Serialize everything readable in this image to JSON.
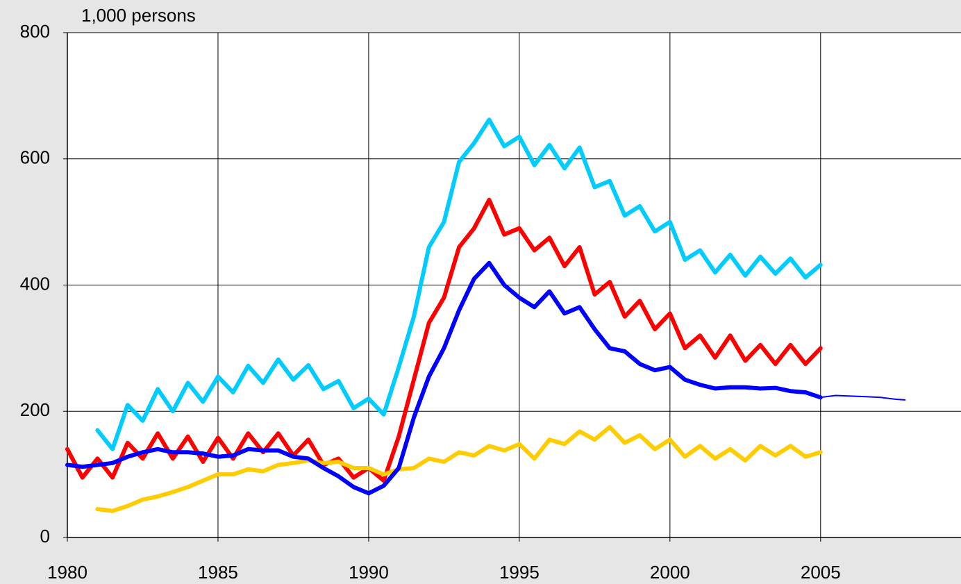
{
  "chart_data": {
    "type": "line",
    "y_label": "1,000 persons",
    "x": [
      1980,
      1980.5,
      1981,
      1981.5,
      1982,
      1982.5,
      1983,
      1983.5,
      1984,
      1984.5,
      1985,
      1985.5,
      1986,
      1986.5,
      1987,
      1987.5,
      1988,
      1988.5,
      1989,
      1989.5,
      1990,
      1990.5,
      1991,
      1991.5,
      1992,
      1992.5,
      1993,
      1993.5,
      1994,
      1994.5,
      1995,
      1995.5,
      1996,
      1996.5,
      1997,
      1997.5,
      1998,
      1998.5,
      1999,
      1999.5,
      2000,
      2000.5,
      2001,
      2001.5,
      2002,
      2002.5,
      2003,
      2003.5,
      2004,
      2004.5,
      2005
    ],
    "series": [
      {
        "color": "#00ccff",
        "width": 6,
        "values": [
          null,
          null,
          170,
          140,
          210,
          185,
          235,
          200,
          245,
          215,
          255,
          230,
          272,
          245,
          282,
          250,
          273,
          235,
          248,
          205,
          220,
          195,
          270,
          350,
          460,
          500,
          595,
          625,
          662,
          620,
          635,
          590,
          622,
          585,
          618,
          555,
          565,
          510,
          525,
          485,
          500,
          440,
          455,
          420,
          448,
          415,
          445,
          418,
          442,
          412,
          432
        ]
      },
      {
        "color": "#ff0000",
        "width": 6,
        "values": [
          140,
          95,
          125,
          95,
          150,
          125,
          165,
          125,
          160,
          120,
          158,
          125,
          165,
          135,
          165,
          130,
          155,
          115,
          125,
          95,
          110,
          90,
          160,
          250,
          340,
          380,
          460,
          490,
          535,
          480,
          490,
          455,
          475,
          430,
          460,
          385,
          405,
          350,
          375,
          330,
          355,
          300,
          320,
          285,
          320,
          280,
          305,
          275,
          305,
          275,
          300
        ]
      },
      {
        "color": "#ffcc00",
        "width": 6,
        "values": [
          null,
          null,
          45,
          42,
          50,
          60,
          65,
          72,
          80,
          90,
          100,
          100,
          108,
          105,
          115,
          118,
          122,
          118,
          120,
          110,
          110,
          100,
          108,
          110,
          125,
          120,
          135,
          130,
          145,
          138,
          148,
          125,
          155,
          148,
          168,
          155,
          175,
          150,
          162,
          140,
          155,
          128,
          145,
          125,
          140,
          122,
          145,
          130,
          145,
          128,
          135
        ]
      },
      {
        "color": "#0000ff",
        "width": 6,
        "values": [
          115,
          112,
          115,
          118,
          128,
          135,
          140,
          135,
          135,
          133,
          128,
          130,
          140,
          138,
          138,
          128,
          125,
          110,
          97,
          80,
          70,
          82,
          110,
          190,
          255,
          300,
          360,
          410,
          435,
          400,
          380,
          365,
          390,
          355,
          365,
          330,
          300,
          295,
          275,
          265,
          270,
          250,
          242,
          236,
          238,
          238,
          236,
          237,
          232,
          230,
          222
        ]
      },
      {
        "color": "#0000ff",
        "width": 2,
        "x": [
          2005,
          2005.5,
          2006,
          2006.5,
          2007,
          2007.5,
          2007.8
        ],
        "values": [
          222,
          225,
          224,
          223,
          222,
          219,
          218
        ]
      }
    ],
    "xlim": [
      1980,
      2009.66
    ],
    "xticks": [
      1980,
      1985,
      1990,
      1995,
      2000,
      2005
    ],
    "ylim": [
      0,
      800
    ],
    "yticks": [
      0,
      200,
      400,
      600,
      800
    ],
    "grid": true
  }
}
